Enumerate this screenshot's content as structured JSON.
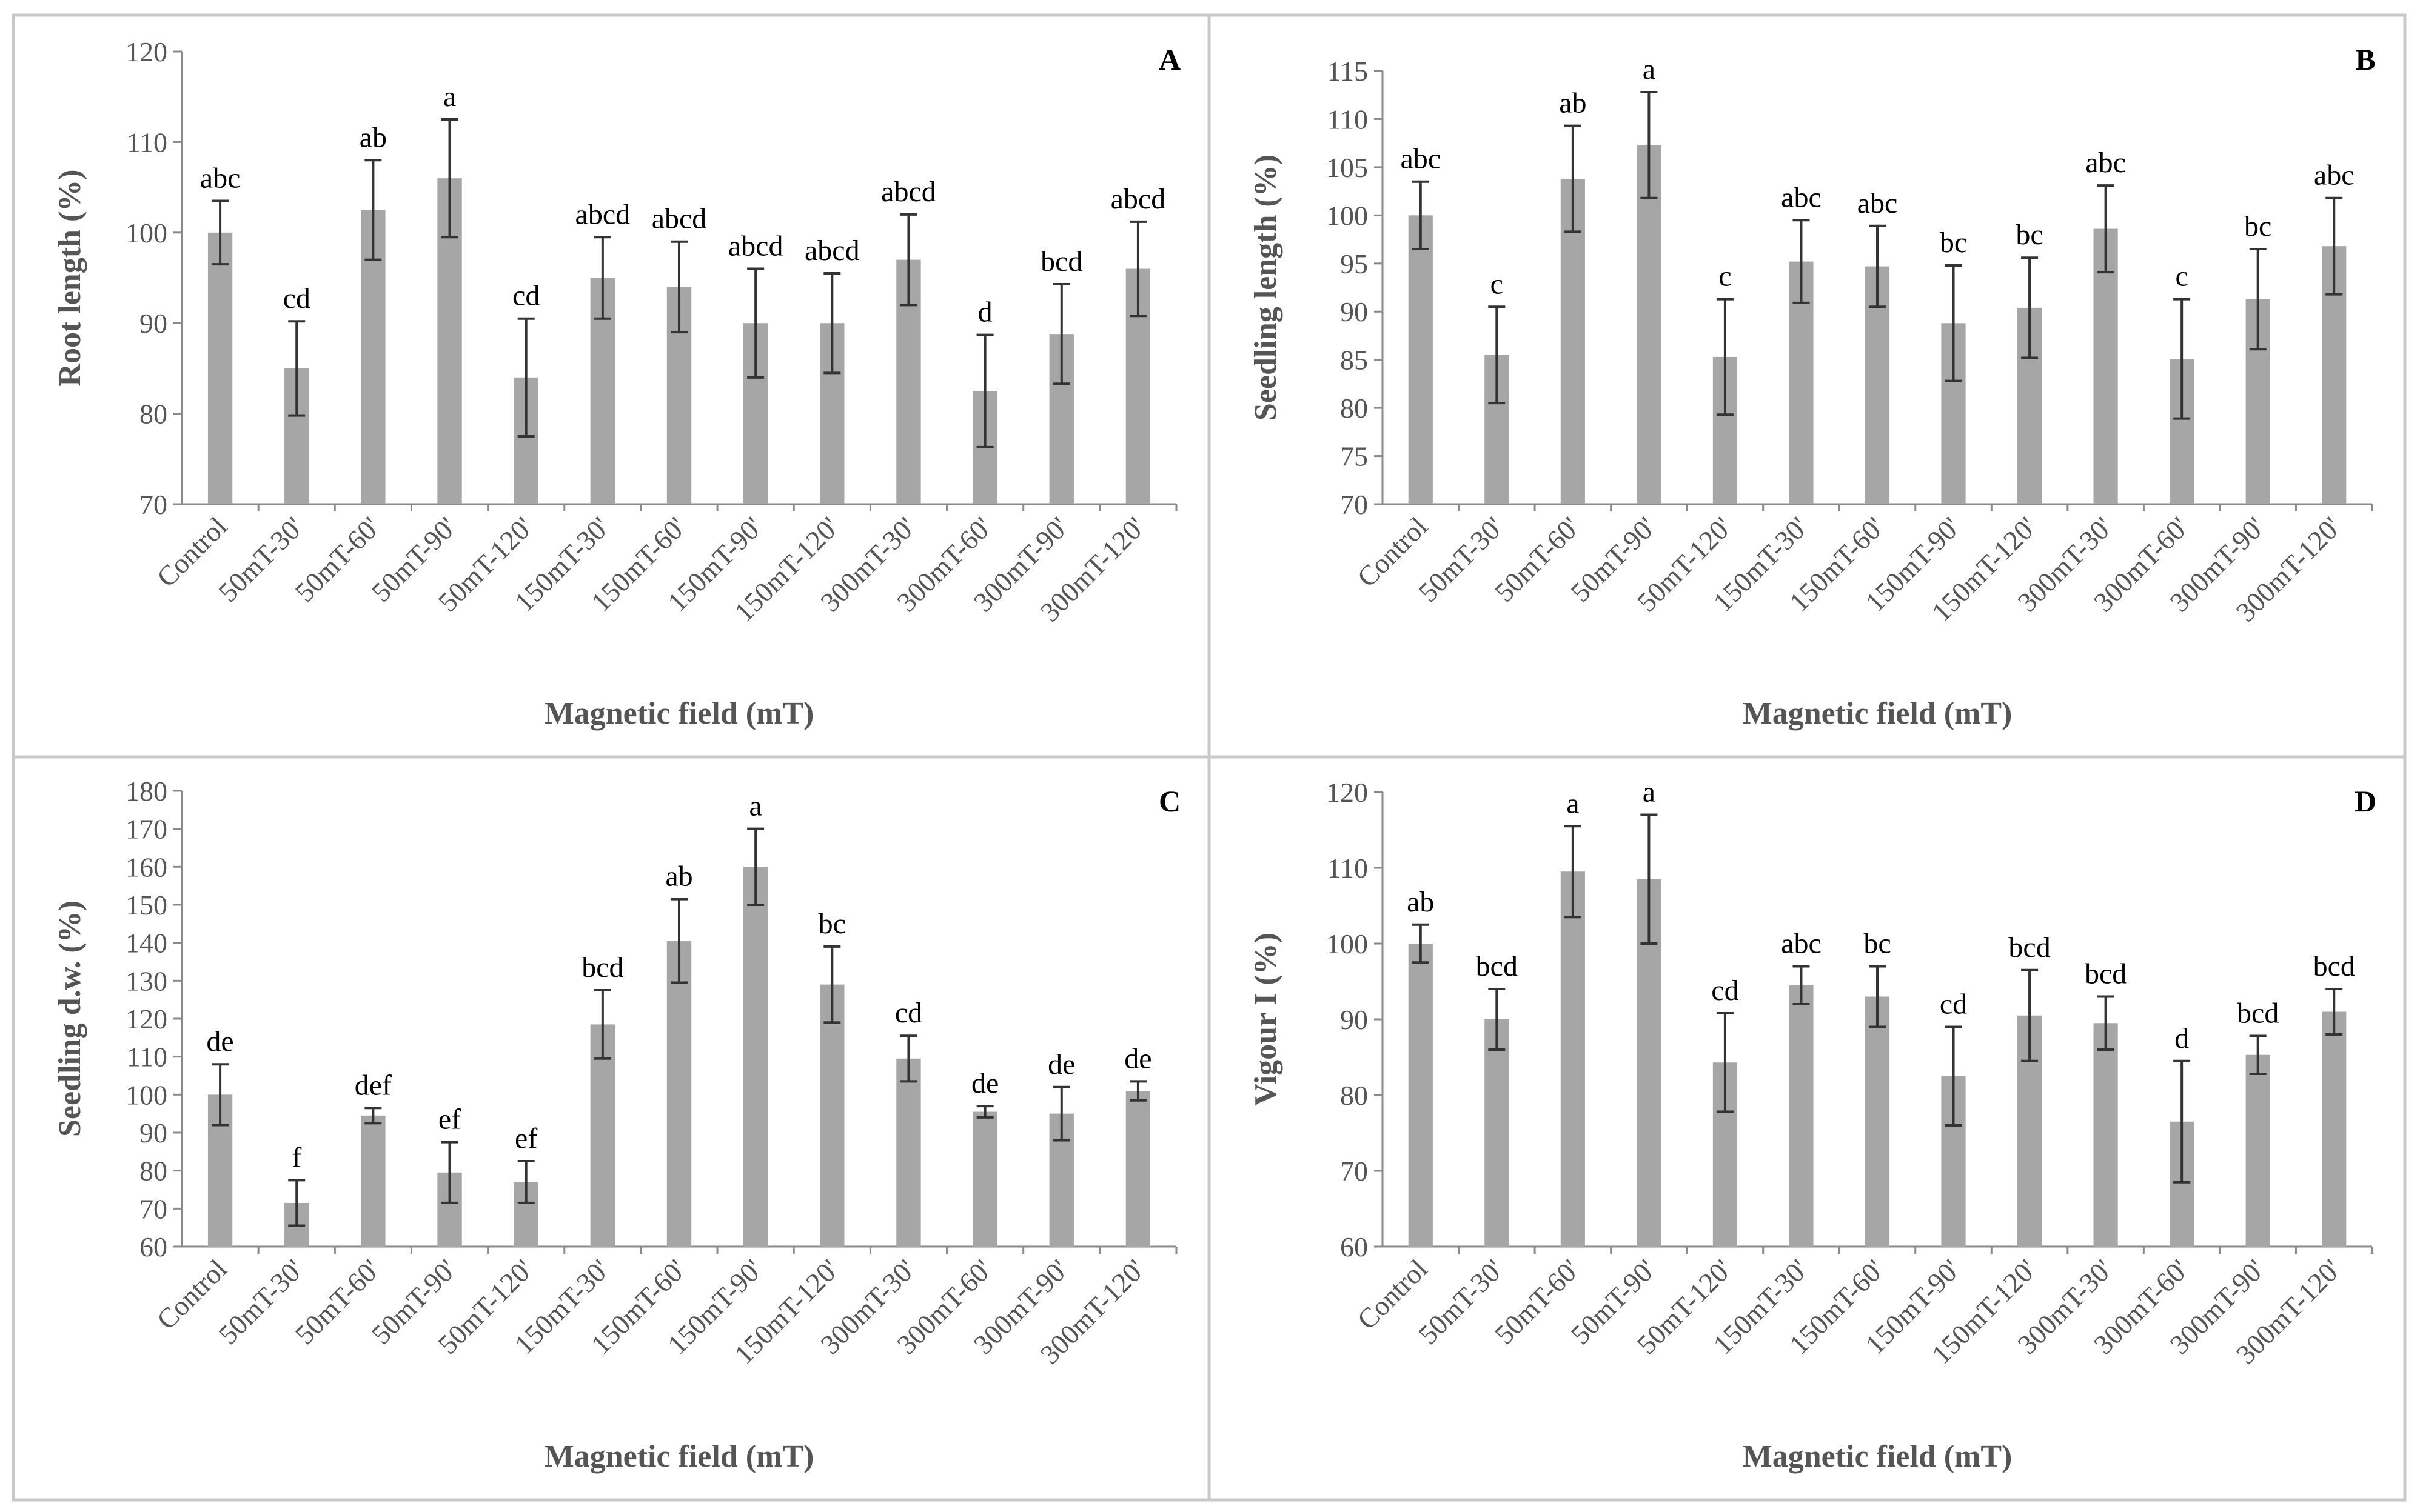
{
  "chart_data": [
    {
      "panel": "A",
      "type": "bar",
      "xlabel": "Magnetic field (mT)",
      "ylabel": "Root length (%)",
      "ylim": [
        70,
        120
      ],
      "yticks": [
        70,
        80,
        90,
        100,
        110,
        120
      ],
      "categories": [
        "Control",
        "50mT-30'",
        "50mT-60'",
        "50mT-90'",
        "50mT-120'",
        "150mT-30'",
        "150mT-60'",
        "150mT-90'",
        "150mT-120'",
        "300mT-30'",
        "300mT-60'",
        "300mT-90'",
        "300mT-120'"
      ],
      "values": [
        100,
        85,
        102.5,
        106,
        84,
        95,
        94,
        90,
        90,
        97,
        82.5,
        88.8,
        96
      ],
      "errors": [
        3.5,
        5.2,
        5.5,
        6.5,
        6.5,
        4.5,
        5,
        6,
        5.5,
        5,
        6.2,
        5.5,
        5.2
      ],
      "letters": [
        "abc",
        "cd",
        "ab",
        "a",
        "cd",
        "abcd",
        "abcd",
        "abcd",
        "abcd",
        "abcd",
        "d",
        "bcd",
        "abcd"
      ],
      "grid": false
    },
    {
      "panel": "B",
      "type": "bar",
      "xlabel": "Magnetic field (mT)",
      "ylabel": "Seedling length (%)",
      "ylim": [
        70,
        115
      ],
      "yticks": [
        70,
        75,
        80,
        85,
        90,
        95,
        100,
        105,
        110,
        115
      ],
      "categories": [
        "Control",
        "50mT-30'",
        "50mT-60'",
        "50mT-90'",
        "50mT-120'",
        "150mT-30'",
        "150mT-60'",
        "150mT-90'",
        "150mT-120'",
        "300mT-30'",
        "300mT-60'",
        "300mT-90'",
        "300mT-120'"
      ],
      "values": [
        100,
        85.5,
        103.8,
        107.3,
        85.3,
        95.2,
        94.7,
        88.8,
        90.4,
        98.6,
        85.1,
        91.3,
        96.8
      ],
      "errors": [
        3.5,
        5,
        5.5,
        5.5,
        6,
        4.3,
        4.2,
        6,
        5.2,
        4.5,
        6.2,
        5.2,
        5
      ],
      "letters": [
        "abc",
        "c",
        "ab",
        "a",
        "c",
        "abc",
        "abc",
        "bc",
        "bc",
        "abc",
        "c",
        "bc",
        "abc"
      ],
      "grid": false
    },
    {
      "panel": "C",
      "type": "bar",
      "xlabel": "Magnetic field (mT)",
      "ylabel": "Seedling d.w. (%)",
      "ylim": [
        60,
        180
      ],
      "yticks": [
        60,
        70,
        80,
        90,
        100,
        110,
        120,
        130,
        140,
        150,
        160,
        170,
        180
      ],
      "categories": [
        "Control",
        "50mT-30'",
        "50mT-60'",
        "50mT-90'",
        "50mT-120'",
        "150mT-30'",
        "150mT-60'",
        "150mT-90'",
        "150mT-120'",
        "300mT-30'",
        "300mT-60'",
        "300mT-90'",
        "300mT-120'"
      ],
      "values": [
        100,
        71.5,
        94.5,
        79.5,
        77,
        118.5,
        140.5,
        160,
        129,
        109.5,
        95.5,
        95,
        101
      ],
      "errors": [
        8,
        6,
        2,
        8,
        5.5,
        9,
        11,
        10,
        10,
        6,
        1.5,
        7,
        2.5
      ],
      "letters": [
        "de",
        "f",
        "def",
        "ef",
        "ef",
        "bcd",
        "ab",
        "a",
        "bc",
        "cd",
        "de",
        "de",
        "de"
      ],
      "grid": false
    },
    {
      "panel": "D",
      "type": "bar",
      "xlabel": "Magnetic field (mT)",
      "ylabel": "Vigour I (%)",
      "ylim": [
        60,
        120
      ],
      "yticks": [
        60,
        70,
        80,
        90,
        100,
        110,
        120
      ],
      "categories": [
        "Control",
        "50mT-30'",
        "50mT-60'",
        "50mT-90'",
        "50mT-120'",
        "150mT-30'",
        "150mT-60'",
        "150mT-90'",
        "150mT-120'",
        "300mT-30'",
        "300mT-60'",
        "300mT-90'",
        "300mT-120'"
      ],
      "values": [
        100,
        90,
        109.5,
        108.5,
        84.3,
        94.5,
        93,
        82.5,
        90.5,
        89.5,
        76.5,
        85.3,
        91
      ],
      "errors": [
        2.5,
        4,
        6,
        8.5,
        6.5,
        2.5,
        4,
        6.5,
        6,
        3.5,
        8,
        2.5,
        3
      ],
      "letters": [
        "ab",
        "bcd",
        "a",
        "a",
        "cd",
        "abc",
        "bc",
        "cd",
        "bcd",
        "bcd",
        "d",
        "bcd",
        "bcd"
      ],
      "grid": false
    }
  ]
}
